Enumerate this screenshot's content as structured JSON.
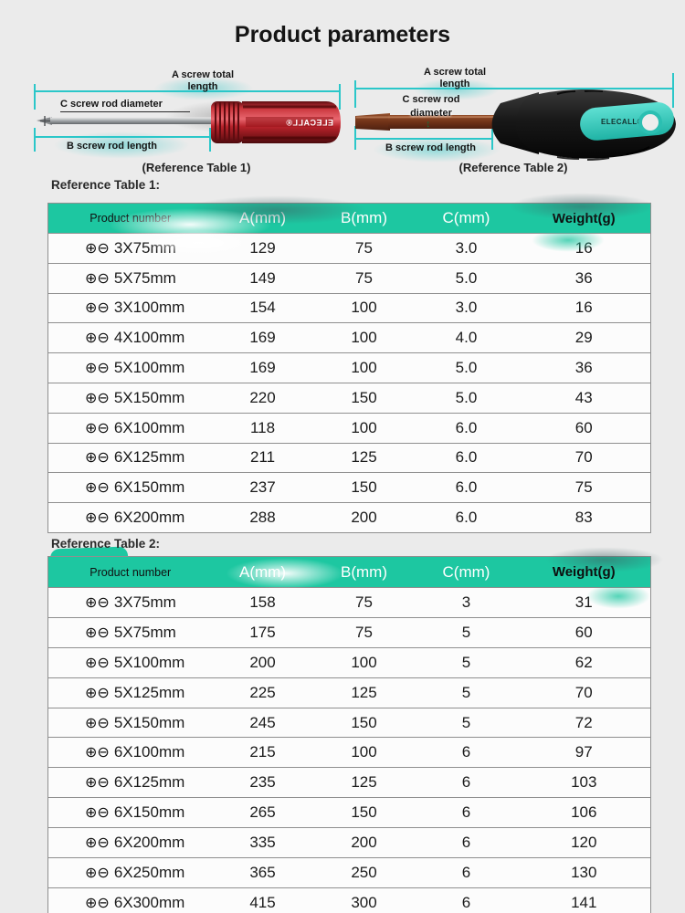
{
  "page": {
    "title": "Product parameters",
    "background": "#ebebeb",
    "accent_teal": "#1dc7a1",
    "dimension_line_color": "#2bc7c9"
  },
  "icons": {
    "phillips": "⊕",
    "slotted": "⊖",
    "diameter_arrow": "↕"
  },
  "diagrams": [
    {
      "label_a": "A screw total length",
      "label_c": "C screw rod diameter",
      "label_b": "B screw rod length",
      "caption": "(Reference Table 1)",
      "brand": "ELECALL®"
    },
    {
      "label_a": "A screw total length",
      "label_c_line1": "C screw rod",
      "label_c_line2": "diameter",
      "label_b": "B screw rod length",
      "caption": "(Reference Table 2)",
      "brand": "ELECALL®"
    }
  ],
  "tables": [
    {
      "heading": "Reference Table 1:",
      "columns": [
        "Product number",
        "A(mm)",
        "B(mm)",
        "C(mm)",
        "Weight(g)"
      ],
      "rows": [
        [
          "3X75mm",
          "129",
          "75",
          "3.0",
          "16"
        ],
        [
          "5X75mm",
          "149",
          "75",
          "5.0",
          "36"
        ],
        [
          "3X100mm",
          "154",
          "100",
          "3.0",
          "16"
        ],
        [
          "4X100mm",
          "169",
          "100",
          "4.0",
          "29"
        ],
        [
          "5X100mm",
          "169",
          "100",
          "5.0",
          "36"
        ],
        [
          "5X150mm",
          "220",
          "150",
          "5.0",
          "43"
        ],
        [
          "6X100mm",
          "118",
          "100",
          "6.0",
          "60"
        ],
        [
          "6X125mm",
          "211",
          "125",
          "6.0",
          "70"
        ],
        [
          "6X150mm",
          "237",
          "150",
          "6.0",
          "75"
        ],
        [
          "6X200mm",
          "288",
          "200",
          "6.0",
          "83"
        ]
      ]
    },
    {
      "heading": "Reference Table 2:",
      "columns": [
        "Product number",
        "A(mm)",
        "B(mm)",
        "C(mm)",
        "Weight(g)"
      ],
      "rows": [
        [
          "3X75mm",
          "158",
          "75",
          "3",
          "31"
        ],
        [
          "5X75mm",
          "175",
          "75",
          "5",
          "60"
        ],
        [
          "5X100mm",
          "200",
          "100",
          "5",
          "62"
        ],
        [
          "5X125mm",
          "225",
          "125",
          "5",
          "70"
        ],
        [
          "5X150mm",
          "245",
          "150",
          "5",
          "72"
        ],
        [
          "6X100mm",
          "215",
          "100",
          "6",
          "97"
        ],
        [
          "6X125mm",
          "235",
          "125",
          "6",
          "103"
        ],
        [
          "6X150mm",
          "265",
          "150",
          "6",
          "106"
        ],
        [
          "6X200mm",
          "335",
          "200",
          "6",
          "120"
        ],
        [
          "6X250mm",
          "365",
          "250",
          "6",
          "130"
        ],
        [
          "6X300mm",
          "415",
          "300",
          "6",
          "141"
        ]
      ]
    }
  ]
}
